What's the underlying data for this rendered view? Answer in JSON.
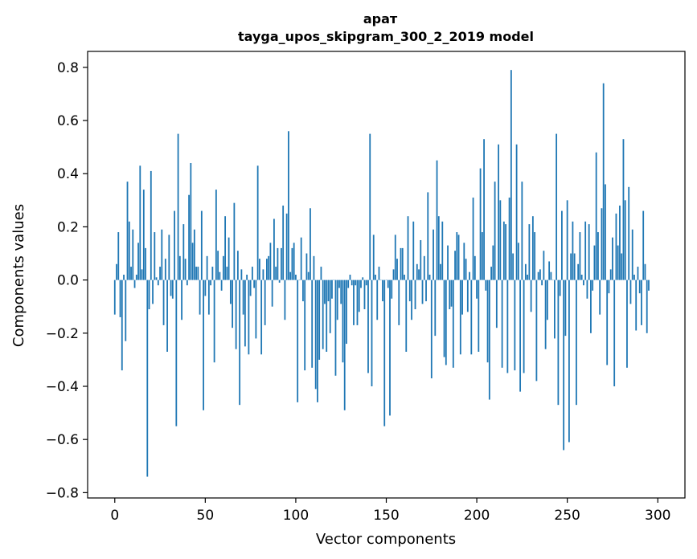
{
  "chart_data": {
    "type": "bar",
    "title_line1": "арат",
    "title_line2": "tayga_upos_skipgram_300_2_2019 model",
    "xlabel": "Vector components",
    "ylabel": "Components values",
    "xlim": [
      -15,
      315
    ],
    "ylim": [
      -0.82,
      0.86
    ],
    "xticks": [
      0,
      50,
      100,
      150,
      200,
      250,
      300
    ],
    "yticks": [
      -0.8,
      -0.6,
      -0.4,
      -0.2,
      0.0,
      0.2,
      0.4,
      0.6,
      0.8
    ],
    "ytick_labels": [
      "−0.8",
      "−0.6",
      "−0.4",
      "−0.2",
      "0.0",
      "0.2",
      "0.4",
      "0.6",
      "0.8"
    ],
    "colors": {
      "bar": "#1f77b4",
      "axes": "#000000",
      "background": "#ffffff"
    },
    "series": [
      {
        "name": "components",
        "values": [
          -0.13,
          0.06,
          0.18,
          -0.14,
          -0.34,
          0.02,
          -0.23,
          0.37,
          0.22,
          0.05,
          0.19,
          -0.03,
          0.02,
          0.14,
          0.43,
          0.04,
          0.34,
          0.12,
          -0.74,
          -0.11,
          0.41,
          -0.09,
          0.18,
          0.01,
          -0.02,
          0.05,
          0.19,
          -0.17,
          0.08,
          -0.27,
          0.17,
          -0.06,
          -0.07,
          0.26,
          -0.55,
          0.55,
          0.09,
          -0.15,
          0.21,
          0.08,
          -0.02,
          0.32,
          0.44,
          0.14,
          0.19,
          0.05,
          0.05,
          -0.13,
          0.26,
          -0.49,
          -0.06,
          0.09,
          -0.13,
          -0.02,
          0.05,
          -0.31,
          0.34,
          0.11,
          0.03,
          -0.04,
          0.09,
          0.24,
          0.05,
          0.16,
          -0.09,
          -0.18,
          0.29,
          -0.26,
          0.11,
          -0.47,
          0.04,
          -0.13,
          -0.25,
          0.02,
          -0.28,
          -0.06,
          0.05,
          -0.03,
          -0.22,
          0.43,
          0.08,
          -0.28,
          0.04,
          -0.17,
          0.08,
          0.09,
          0.14,
          -0.1,
          0.23,
          0.05,
          0.12,
          -0.01,
          0.12,
          0.28,
          -0.15,
          0.25,
          0.56,
          0.03,
          0.12,
          0.14,
          0.02,
          -0.46,
          0.0,
          0.16,
          -0.08,
          -0.34,
          0.1,
          0.03,
          0.27,
          -0.33,
          0.09,
          -0.41,
          -0.46,
          -0.3,
          0.05,
          -0.26,
          -0.09,
          -0.27,
          -0.08,
          -0.2,
          -0.07,
          0.0,
          -0.36,
          -0.15,
          -0.03,
          -0.09,
          -0.31,
          -0.49,
          -0.24,
          -0.03,
          0.02,
          -0.02,
          -0.17,
          -0.02,
          -0.17,
          -0.12,
          -0.03,
          0.01,
          -0.11,
          -0.02,
          -0.35,
          0.55,
          -0.4,
          0.17,
          0.02,
          -0.15,
          0.05,
          0.0,
          -0.08,
          -0.55,
          0.0,
          -0.03,
          -0.51,
          -0.07,
          0.04,
          0.17,
          0.08,
          -0.17,
          0.12,
          0.12,
          0.02,
          -0.27,
          0.24,
          -0.08,
          -0.15,
          0.22,
          -0.11,
          0.06,
          0.04,
          0.15,
          -0.09,
          0.09,
          -0.08,
          0.33,
          0.02,
          -0.37,
          0.19,
          -0.21,
          0.45,
          0.24,
          0.06,
          0.22,
          -0.29,
          -0.32,
          0.13,
          -0.11,
          -0.1,
          -0.33,
          0.11,
          0.18,
          0.17,
          -0.28,
          -0.13,
          0.14,
          0.08,
          -0.12,
          0.03,
          -0.28,
          0.31,
          0.09,
          -0.07,
          -0.27,
          0.42,
          0.18,
          0.53,
          -0.04,
          -0.31,
          -0.45,
          0.05,
          0.13,
          0.37,
          -0.18,
          0.51,
          0.3,
          -0.33,
          0.22,
          0.21,
          -0.35,
          0.31,
          0.79,
          0.1,
          -0.34,
          0.51,
          0.14,
          -0.42,
          0.37,
          -0.35,
          0.06,
          0.02,
          0.21,
          -0.12,
          0.24,
          0.18,
          -0.38,
          0.03,
          0.04,
          -0.02,
          0.11,
          -0.26,
          -0.15,
          0.07,
          0.03,
          0.0,
          -0.22,
          0.55,
          -0.47,
          -0.06,
          0.26,
          -0.64,
          -0.21,
          0.3,
          -0.61,
          0.1,
          0.22,
          0.1,
          -0.47,
          0.06,
          0.18,
          0.02,
          -0.02,
          0.22,
          -0.07,
          0.21,
          -0.2,
          -0.04,
          0.13,
          0.48,
          0.18,
          -0.13,
          0.27,
          0.74,
          0.36,
          -0.32,
          -0.05,
          0.04,
          0.16,
          -0.4,
          0.25,
          0.13,
          0.28,
          0.1,
          0.53,
          0.3,
          -0.33,
          0.35,
          -0.09,
          0.19,
          0.02,
          -0.19,
          0.05,
          -0.05,
          -0.17,
          0.26,
          0.06,
          -0.2,
          -0.04
        ]
      }
    ]
  }
}
